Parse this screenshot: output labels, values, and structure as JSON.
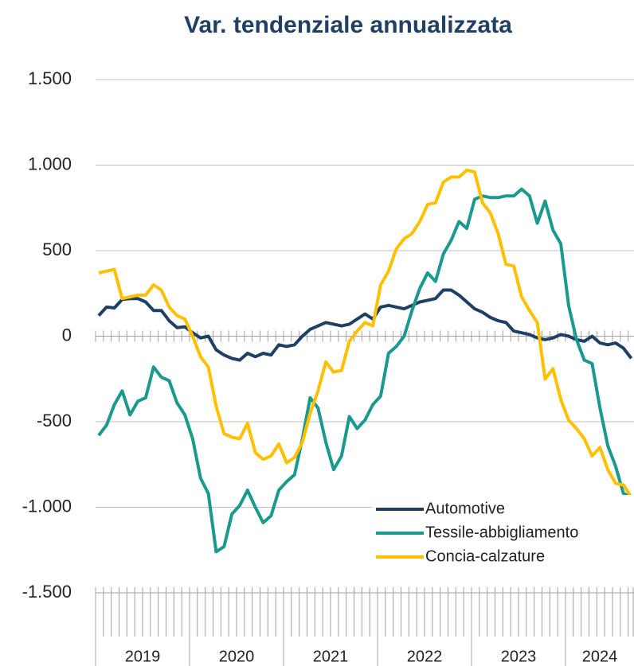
{
  "chart_data": {
    "type": "line",
    "title": "Var. tendenziale annualizzata",
    "categories": [
      null,
      null,
      null,
      null,
      null,
      null,
      null,
      null,
      null,
      null,
      null,
      null,
      null,
      null,
      null,
      null,
      null,
      null,
      null,
      null,
      null,
      null,
      null,
      null,
      null,
      null,
      null,
      null,
      null,
      null,
      null,
      null,
      null,
      null,
      null,
      null,
      null,
      null,
      null,
      null,
      null,
      null,
      null,
      null,
      null,
      null,
      null,
      null,
      null,
      null,
      null,
      null,
      null,
      null,
      null,
      null,
      null,
      null,
      null,
      null,
      null,
      null,
      null,
      null,
      null,
      null,
      null,
      null,
      null
    ],
    "year_labels": [
      "2019",
      "2020",
      "2021",
      "2022",
      "2023",
      "2024"
    ],
    "series": [
      {
        "name": "Automotive",
        "color": "#1f3f63",
        "values": [
          120,
          170,
          165,
          215,
          220,
          220,
          200,
          150,
          150,
          90,
          50,
          55,
          20,
          -10,
          0,
          -80,
          -110,
          -130,
          -140,
          -100,
          -120,
          -100,
          -110,
          -50,
          -60,
          -50,
          0,
          40,
          60,
          80,
          70,
          60,
          70,
          100,
          130,
          100,
          170,
          180,
          170,
          160,
          180,
          200,
          210,
          220,
          270,
          270,
          240,
          200,
          160,
          140,
          110,
          90,
          80,
          30,
          20,
          10,
          -10,
          -20,
          -10,
          10,
          0,
          -20,
          -30,
          0,
          -40,
          -50,
          -40,
          -70,
          -130
        ]
      },
      {
        "name": "Tessile-abbigliamento",
        "color": "#1a9a8c",
        "values": [
          -580,
          -520,
          -400,
          -320,
          -460,
          -380,
          -360,
          -180,
          -240,
          -260,
          -390,
          -460,
          -600,
          -830,
          -920,
          -1260,
          -1230,
          -1040,
          -990,
          -900,
          -1000,
          -1090,
          -1050,
          -900,
          -850,
          -810,
          -600,
          -360,
          -420,
          -620,
          -780,
          -700,
          -470,
          -540,
          -490,
          -400,
          -350,
          -100,
          -60,
          0,
          150,
          280,
          370,
          320,
          480,
          560,
          670,
          630,
          800,
          820,
          810,
          810,
          820,
          820,
          860,
          820,
          660,
          790,
          620,
          540,
          180,
          -20,
          -140,
          -160,
          -420,
          -640,
          -760,
          -920,
          -940
        ]
      },
      {
        "name": "Concia-calzature",
        "color": "#ffc000",
        "values": [
          370,
          380,
          390,
          220,
          230,
          240,
          240,
          300,
          270,
          170,
          120,
          100,
          0,
          -120,
          -180,
          -410,
          -570,
          -590,
          -600,
          -510,
          -680,
          -720,
          -700,
          -630,
          -740,
          -710,
          -620,
          -450,
          -320,
          -150,
          -210,
          -200,
          -30,
          30,
          80,
          60,
          300,
          380,
          510,
          570,
          600,
          670,
          770,
          780,
          900,
          930,
          930,
          970,
          960,
          780,
          720,
          600,
          420,
          410,
          230,
          150,
          80,
          -250,
          -190,
          -370,
          -490,
          -540,
          -600,
          -700,
          -650,
          -780,
          -860,
          -870,
          -940
        ]
      }
    ],
    "ylim": [
      -1500,
      1500
    ],
    "yticks": [
      {
        "value": -1500,
        "label": "-1.500"
      },
      {
        "value": -1000,
        "label": "-1.000"
      },
      -500,
      0,
      500,
      {
        "value": 1000,
        "label": "1.000"
      },
      {
        "value": 1500,
        "label": "1.500"
      }
    ],
    "grid": true
  }
}
